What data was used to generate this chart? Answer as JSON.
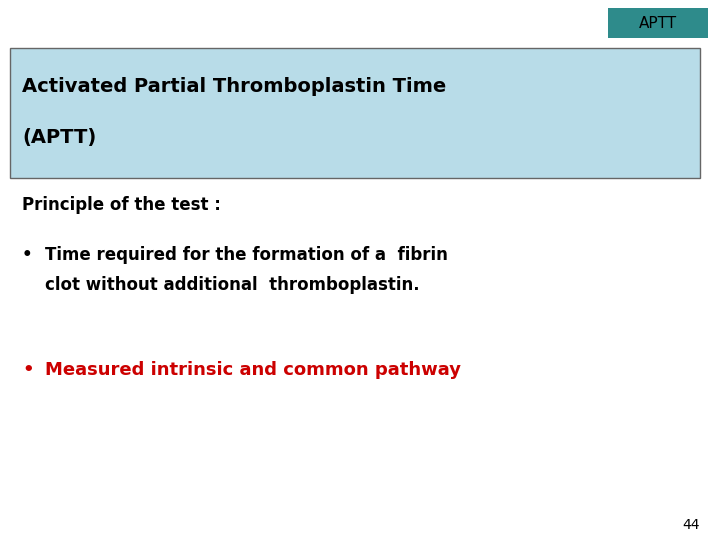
{
  "background_color": "#ffffff",
  "aptt_box_color": "#2e8b8b",
  "aptt_box_text": "APTT",
  "aptt_box_text_color": "#000000",
  "title_box_color": "#b8dce8",
  "title_box_border_color": "#666666",
  "title_line1": "Activated Partial Thromboplastin Time",
  "title_line2": "(APTT)",
  "title_text_color": "#000000",
  "principle_header": "Principle of the test :",
  "bullet1_line1": "Time required for the formation of a  fibrin",
  "bullet1_line2": "clot without additional  thromboplastin.",
  "bullet2": "Measured intrinsic and common pathway",
  "bullet1_color": "#000000",
  "bullet2_color": "#cc0000",
  "principle_color": "#000000",
  "page_number": "44",
  "page_number_color": "#000000",
  "aptt_fontsize": 11,
  "title_fontsize": 14,
  "principle_fontsize": 12,
  "bullet1_fontsize": 12,
  "bullet2_fontsize": 13,
  "page_fontsize": 10
}
